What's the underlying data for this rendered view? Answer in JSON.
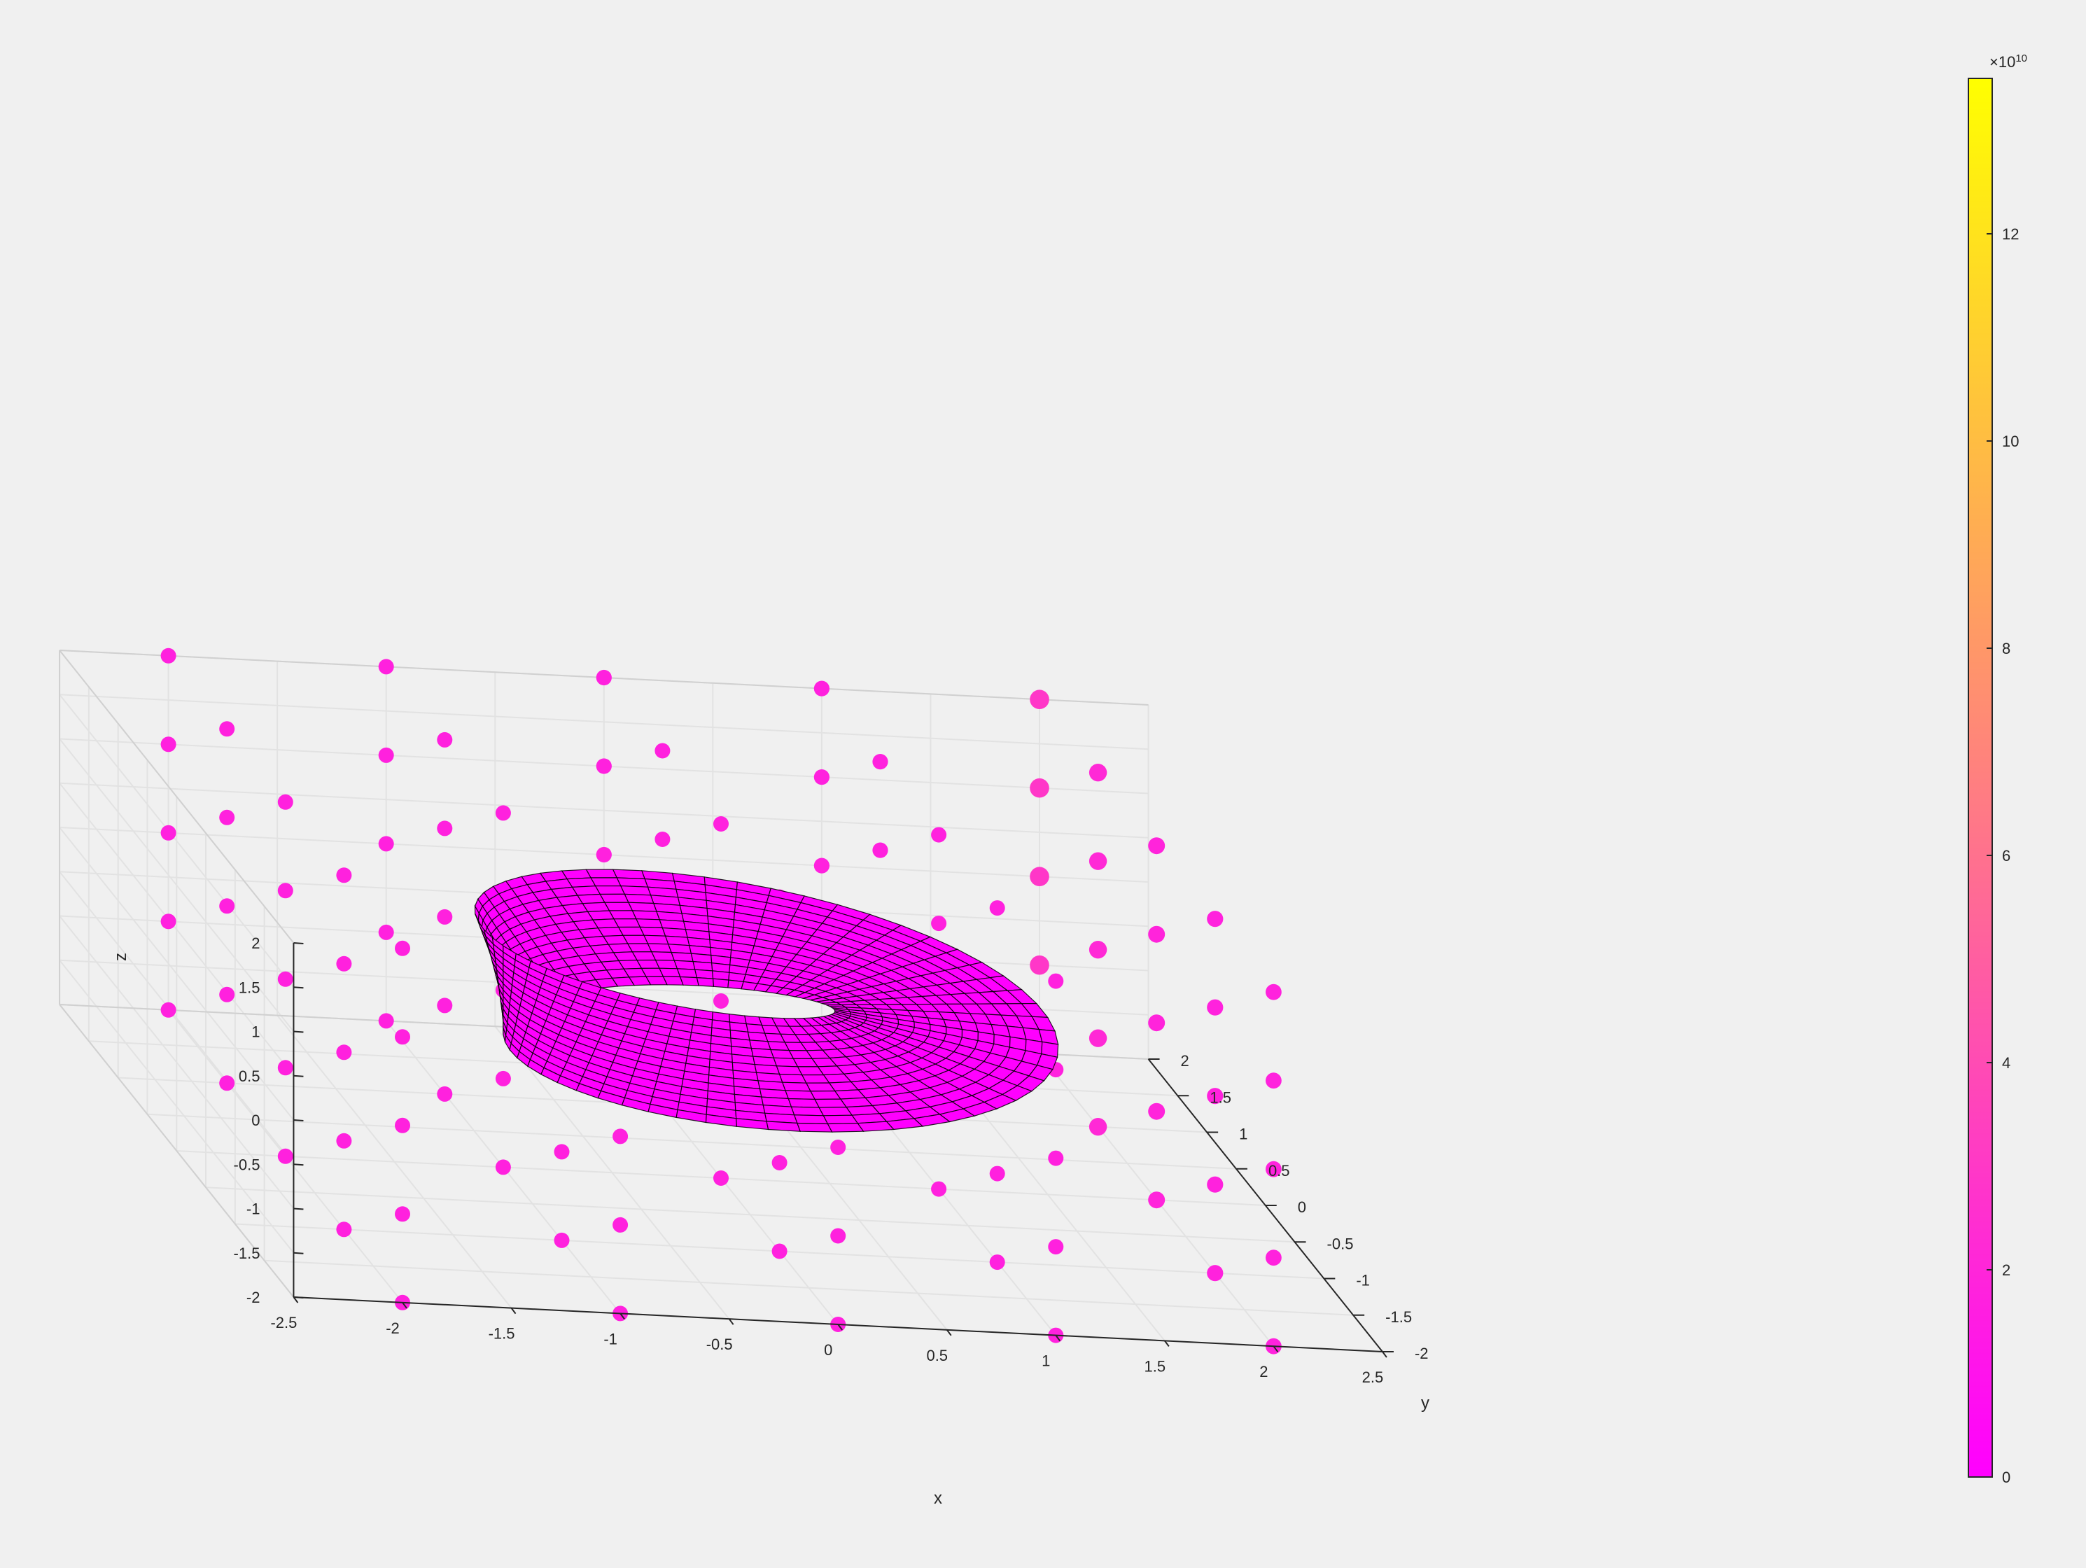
{
  "chart_data": {
    "type": "scatter3d",
    "xlabel": "x",
    "ylabel": "y",
    "zlabel": "z",
    "xlim": [
      -2.5,
      2.5
    ],
    "ylim": [
      -2,
      2
    ],
    "zlim": [
      -2,
      2
    ],
    "xticks": [
      "-2.5",
      "-2",
      "-1.5",
      "-1",
      "-0.5",
      "0",
      "0.5",
      "1",
      "1.5",
      "2",
      "2.5"
    ],
    "yticks": [
      "-2",
      "-1.5",
      "-1",
      "-0.5",
      "0",
      "0.5",
      "1",
      "1.5",
      "2"
    ],
    "zticks": [
      "-2",
      "-1.5",
      "-1",
      "-0.5",
      "0",
      "0.5",
      "1",
      "1.5",
      "2"
    ],
    "grid": true,
    "colormap": "spring",
    "colorbar": {
      "location": "right",
      "exponent_label": "×10",
      "exponent_power": "10",
      "range": [
        0,
        13.5
      ],
      "ticks": [
        "0",
        "2",
        "4",
        "6",
        "8",
        "10",
        "12"
      ]
    },
    "scatter_grid": {
      "x": [
        -2,
        -1,
        0,
        1,
        2
      ],
      "y": [
        -2,
        -1,
        0,
        1,
        2
      ],
      "z": [
        -2,
        -1,
        0,
        1,
        2
      ]
    },
    "color_value": "proportional to exp(x^3 + y) (range 0 to 1.35e11)",
    "surface": {
      "shape": "mobius-strip",
      "center_radius": 1,
      "half_width": 0.5,
      "color": "#ff00ff",
      "edge_color": "#000000"
    }
  }
}
